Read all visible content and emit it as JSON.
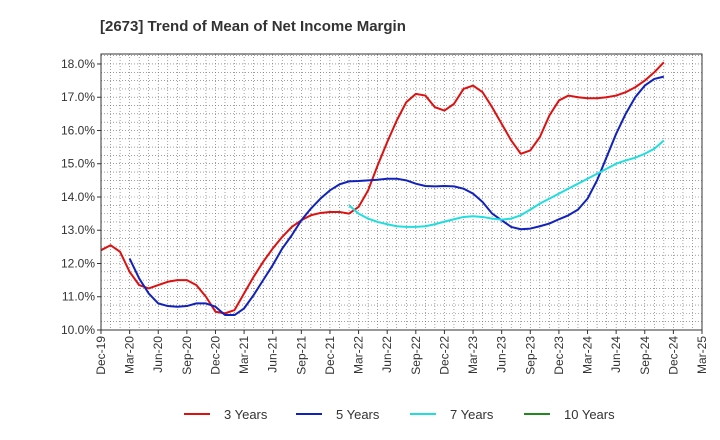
{
  "chart_data": {
    "type": "line",
    "title": "[2673]  Trend of Mean of Net Income Margin",
    "xlabel": "",
    "ylabel": "",
    "ylim": [
      10.0,
      18.3
    ],
    "y_ticks": [
      10.0,
      11.0,
      12.0,
      13.0,
      14.0,
      15.0,
      16.0,
      17.0,
      18.0
    ],
    "y_tick_labels": [
      "10.0%",
      "11.0%",
      "12.0%",
      "13.0%",
      "14.0%",
      "15.0%",
      "16.0%",
      "17.0%",
      "18.0%"
    ],
    "x_start": "Dec-19",
    "x_tick_labels": [
      "Dec-19",
      "Mar-20",
      "Jun-20",
      "Sep-20",
      "Dec-20",
      "Mar-21",
      "Jun-21",
      "Sep-21",
      "Dec-21",
      "Mar-22",
      "Jun-22",
      "Sep-22",
      "Dec-22",
      "Mar-23",
      "Jun-23",
      "Sep-23",
      "Dec-23",
      "Mar-24",
      "Jun-24",
      "Sep-24",
      "Dec-24",
      "Mar-25"
    ],
    "grid": true,
    "legend_position": "bottom",
    "series": [
      {
        "name": "3 Years",
        "color": "#dd1111",
        "values": [
          12.4,
          12.55,
          12.35,
          11.75,
          11.35,
          11.25,
          11.35,
          11.45,
          11.5,
          11.5,
          11.35,
          11.0,
          10.55,
          10.5,
          10.6,
          11.1,
          11.6,
          12.05,
          12.45,
          12.8,
          13.1,
          13.3,
          13.45,
          13.52,
          13.55,
          13.55,
          13.5,
          13.7,
          14.2,
          14.95,
          15.65,
          16.3,
          16.85,
          17.1,
          17.05,
          16.7,
          16.6,
          16.8,
          17.25,
          17.35,
          17.15,
          16.7,
          16.2,
          15.7,
          15.3,
          15.4,
          15.8,
          16.45,
          16.9,
          17.05,
          17.0,
          16.97,
          16.97,
          17.0,
          17.05,
          17.15,
          17.3,
          17.5,
          17.75,
          18.05
        ]
      },
      {
        "name": "5 Years",
        "color": "#1122bb",
        "values": [
          null,
          null,
          null,
          12.15,
          11.55,
          11.1,
          10.8,
          10.72,
          10.7,
          10.72,
          10.8,
          10.8,
          10.7,
          10.45,
          10.45,
          10.65,
          11.05,
          11.5,
          11.95,
          12.45,
          12.85,
          13.3,
          13.65,
          13.95,
          14.2,
          14.38,
          14.47,
          14.48,
          14.5,
          14.52,
          14.55,
          14.55,
          14.5,
          14.4,
          14.33,
          14.32,
          14.33,
          14.32,
          14.25,
          14.1,
          13.85,
          13.5,
          13.3,
          13.1,
          13.03,
          13.05,
          13.12,
          13.2,
          13.33,
          13.45,
          13.62,
          13.95,
          14.5,
          15.2,
          15.9,
          16.5,
          17.0,
          17.35,
          17.55,
          17.62
        ]
      },
      {
        "name": "7 Years",
        "color": "#22dddd",
        "values": [
          null,
          null,
          null,
          null,
          null,
          null,
          null,
          null,
          null,
          null,
          null,
          null,
          null,
          null,
          null,
          null,
          null,
          null,
          null,
          null,
          null,
          null,
          null,
          null,
          null,
          null,
          13.75,
          13.5,
          13.35,
          13.25,
          13.18,
          13.12,
          13.1,
          13.1,
          13.12,
          13.18,
          13.26,
          13.33,
          13.4,
          13.42,
          13.4,
          13.35,
          13.32,
          13.35,
          13.45,
          13.62,
          13.8,
          13.95,
          14.1,
          14.25,
          14.4,
          14.55,
          14.7,
          14.85,
          15.0,
          15.1,
          15.18,
          15.3,
          15.45,
          15.7
        ]
      },
      {
        "name": "10 Years",
        "color": "#228822",
        "values": []
      }
    ]
  }
}
